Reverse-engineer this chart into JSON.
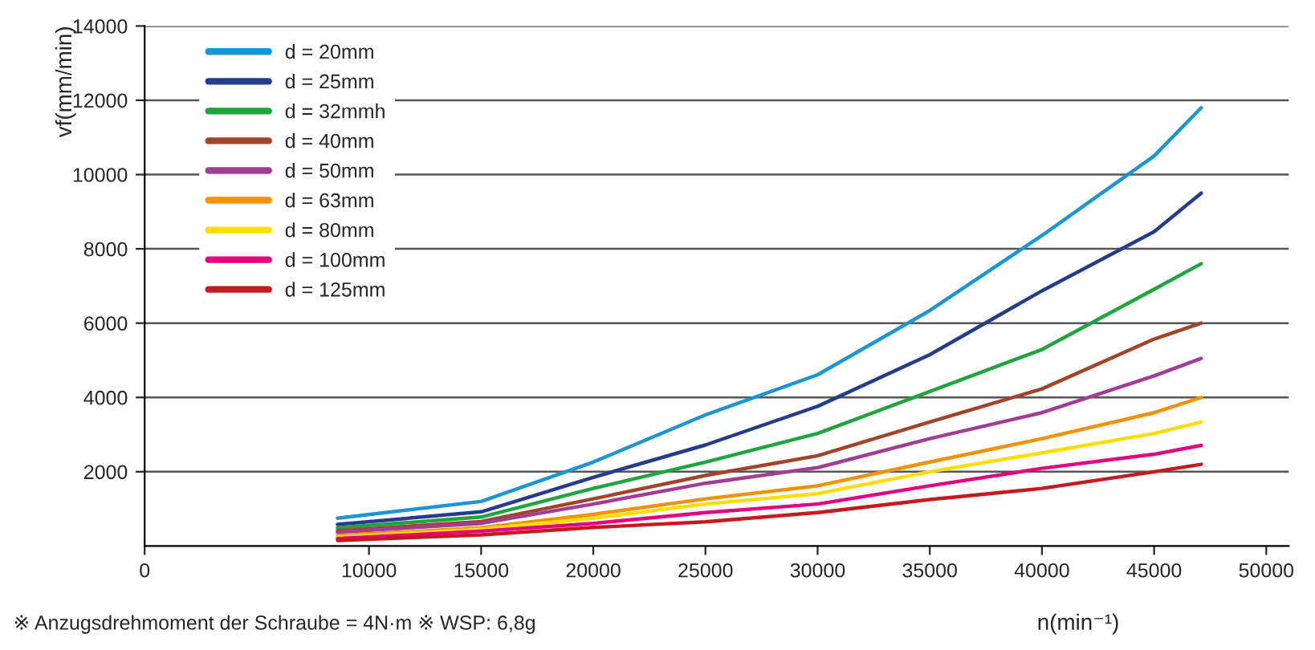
{
  "chart_data": {
    "type": "line",
    "xlabel": "n(min⁻¹)",
    "ylabel": "vf(mm/min)",
    "x": [
      8600,
      15000,
      20000,
      25000,
      30000,
      35000,
      40000,
      45000,
      47100
    ],
    "series": [
      {
        "name": "d = 20mm",
        "color": "#1a96d4",
        "values": [
          750,
          1200,
          2260,
          3530,
          4610,
          6340,
          8360,
          10500,
          11800
        ]
      },
      {
        "name": "d = 25mm",
        "color": "#253c8c",
        "values": [
          580,
          920,
          1850,
          2720,
          3760,
          5150,
          6870,
          8460,
          9500
        ]
      },
      {
        "name": "d = 32mmh",
        "color": "#1fa540",
        "values": [
          490,
          780,
          1550,
          2260,
          3030,
          4160,
          5290,
          6910,
          7600
        ]
      },
      {
        "name": "d = 40mm",
        "color": "#a0442a",
        "values": [
          410,
          660,
          1270,
          1900,
          2430,
          3340,
          4230,
          5570,
          6000
        ]
      },
      {
        "name": "d = 50mm",
        "color": "#a23d96",
        "values": [
          370,
          610,
          1130,
          1690,
          2110,
          2890,
          3590,
          4580,
          5050
        ]
      },
      {
        "name": "d = 63mm",
        "color": "#f39200",
        "values": [
          280,
          490,
          850,
          1270,
          1620,
          2260,
          2890,
          3590,
          4000
        ]
      },
      {
        "name": "d = 80mm",
        "color": "#ffdd00",
        "values": [
          240,
          450,
          750,
          1130,
          1410,
          2000,
          2510,
          3030,
          3340
        ]
      },
      {
        "name": "d = 100mm",
        "color": "#e6007e",
        "values": [
          200,
          400,
          610,
          900,
          1130,
          1620,
          2090,
          2470,
          2710
        ]
      },
      {
        "name": "d = 125mm",
        "color": "#c8191f",
        "values": [
          150,
          300,
          500,
          650,
          900,
          1250,
          1550,
          2000,
          2200
        ]
      }
    ],
    "xlim": [
      0,
      51000
    ],
    "xticks": [
      0,
      10000,
      15000,
      20000,
      25000,
      30000,
      35000,
      40000,
      45000,
      50000
    ],
    "ylim": [
      0,
      14000
    ],
    "yticks": [
      2000,
      4000,
      6000,
      8000,
      10000,
      12000,
      14000
    ],
    "grid": "y",
    "legend": "top left",
    "marker": "none",
    "line_style": "solid",
    "annotations": [
      "※ Anzugsdrehmoment der Schraube = 4N·m ※ WSP: 6,8g"
    ]
  }
}
